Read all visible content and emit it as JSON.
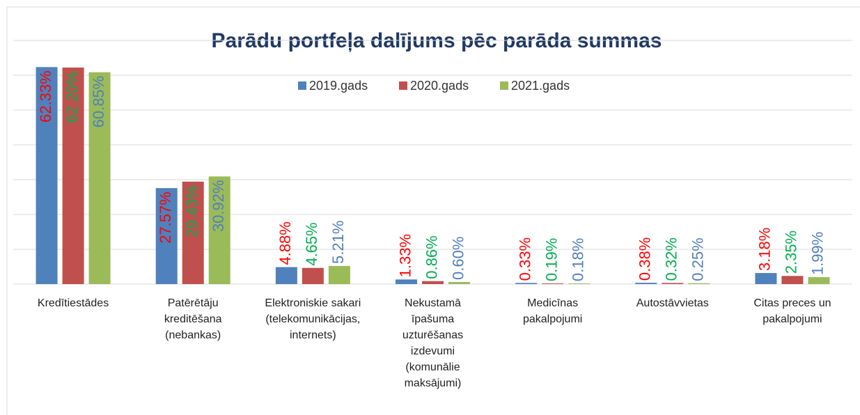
{
  "chart_data": {
    "type": "bar",
    "title": "Parādu portfeļa dalījums pēc parāda summas",
    "categories": [
      "Kredītiestādes",
      "Patērētāju kreditēšana (nebankas)",
      "Elektroniskie sakari (telekomunikācijas, internets)",
      "Nekustamā īpašuma uzturēšanas izdevumi (komunālie maksājumi)",
      "Medicīnas pakalpojumi",
      "Autostāvvietas",
      "Citas preces un pakalpojumi"
    ],
    "series": [
      {
        "name": "2019.gads",
        "color": "#4f81bd",
        "values": [
          62.33,
          27.57,
          4.88,
          1.33,
          0.33,
          0.38,
          3.18
        ],
        "value_labels": [
          "62.33%",
          "27.57%",
          "4.88%",
          "1.33%",
          "0.33%",
          "0.38%",
          "3.18%"
        ]
      },
      {
        "name": "2020.gads",
        "color": "#c0504d",
        "values": [
          62.2,
          29.43,
          4.65,
          0.86,
          0.19,
          0.32,
          2.35
        ],
        "value_labels": [
          "62.20%",
          "29.43%",
          "4.65%",
          "0.86%",
          "0.19%",
          "0.32%",
          "2.35%"
        ]
      },
      {
        "name": "2021.gads",
        "color": "#9bbb59",
        "values": [
          60.85,
          30.92,
          5.21,
          0.6,
          0.18,
          0.25,
          1.99
        ],
        "value_labels": [
          "60.85%",
          "30.92%",
          "5.21%",
          "0.60%",
          "0.18%",
          "0.25%",
          "1.99%"
        ]
      }
    ],
    "value_label_colors": [
      "#ff0000",
      "#00b050",
      "#4f7fbf"
    ],
    "ylim": [
      0,
      70
    ],
    "yticks": [
      0,
      10,
      20,
      30,
      40,
      50,
      60,
      70
    ],
    "grid": true
  }
}
